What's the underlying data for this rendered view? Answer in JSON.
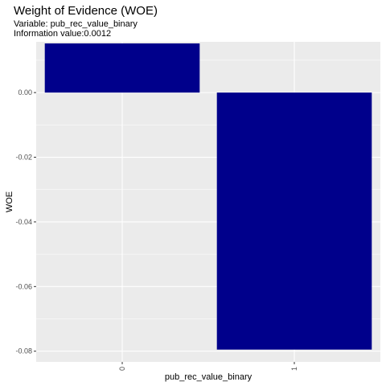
{
  "chart_data": {
    "type": "bar",
    "title": "Weight of Evidence (WOE)",
    "subtitle_lines": [
      "Variable: pub_rec_value_binary",
      "Information value:0.0012"
    ],
    "xlabel": "pub_rec_value_binary",
    "ylabel": "WOE",
    "categories": [
      "0",
      "1"
    ],
    "values": [
      0.0152,
      -0.0795
    ],
    "ylim": [
      -0.0833,
      0.0157
    ],
    "yticks": [
      0.0,
      -0.02,
      -0.04,
      -0.06,
      -0.08
    ],
    "ytick_labels": [
      "0.00",
      "-0.02",
      "-0.04",
      "-0.06",
      "-0.08"
    ],
    "bar_color": "#00008B",
    "panel_background": "#EBEBEB",
    "grid_color": "#FFFFFF",
    "grid": true,
    "legend": "none"
  }
}
